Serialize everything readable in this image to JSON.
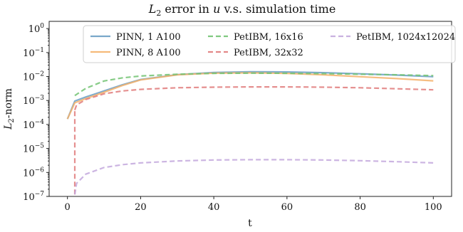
{
  "chart_data": {
    "type": "line",
    "title": "L2 error in u v.s. simulation time",
    "title_parts": {
      "base": "L",
      "sub": "2",
      "rest": " error in ",
      "var": "u",
      "tail": " v.s. simulation time"
    },
    "xlabel": "t",
    "ylabel": "L2-norm",
    "ylabel_parts": {
      "base": "L",
      "sub": "2",
      "rest": "-norm"
    },
    "xlim": [
      -5,
      105
    ],
    "ylim": [
      1e-07,
      2
    ],
    "yscale": "log",
    "xticks": [
      0,
      20,
      40,
      60,
      80,
      100
    ],
    "yticks": [
      {
        "value": 1,
        "exp": "0"
      },
      {
        "value": 0.1,
        "exp": "−1"
      },
      {
        "value": 0.01,
        "exp": "−2"
      },
      {
        "value": 0.001,
        "exp": "−3"
      },
      {
        "value": 0.0001,
        "exp": "−4"
      },
      {
        "value": 1e-05,
        "exp": "−5"
      },
      {
        "value": 1e-06,
        "exp": "−6"
      },
      {
        "value": 1e-07,
        "exp": "−7"
      }
    ],
    "ytick_base": "10",
    "grid": false,
    "legend_position": "top-right",
    "series": [
      {
        "name": "PINN, 1 A100",
        "color": "#6a9ec4",
        "style": "solid",
        "x": [
          0,
          2,
          5,
          10,
          15,
          20,
          30,
          40,
          50,
          60,
          70,
          80,
          90,
          100
        ],
        "y": [
          0.00017,
          0.00095,
          0.0014,
          0.0025,
          0.0045,
          0.0075,
          0.012,
          0.0148,
          0.0158,
          0.0155,
          0.0145,
          0.013,
          0.0115,
          0.0098
        ]
      },
      {
        "name": "PINN, 8 A100",
        "color": "#f5b26b",
        "style": "solid",
        "x": [
          0,
          2,
          5,
          10,
          15,
          20,
          30,
          40,
          50,
          60,
          70,
          80,
          90,
          100
        ],
        "y": [
          0.00017,
          0.0008,
          0.0012,
          0.0022,
          0.0042,
          0.0072,
          0.0118,
          0.0138,
          0.0142,
          0.0135,
          0.0118,
          0.0098,
          0.0082,
          0.0066
        ]
      },
      {
        "name": "PetIBM, 16x16",
        "color": "#72c372",
        "style": "dashed",
        "x": [
          2,
          2.5,
          5,
          10,
          15,
          20,
          30,
          40,
          50,
          60,
          70,
          80,
          90,
          100
        ],
        "y": [
          0.0016,
          0.0018,
          0.0032,
          0.0065,
          0.0088,
          0.0105,
          0.0125,
          0.0135,
          0.0138,
          0.0136,
          0.0132,
          0.0125,
          0.0118,
          0.0109
        ]
      },
      {
        "name": "PetIBM, 32x32",
        "color": "#e07b7b",
        "style": "dashed",
        "x": [
          2,
          2.5,
          5,
          10,
          15,
          20,
          30,
          40,
          50,
          60,
          70,
          80,
          90,
          100
        ],
        "y": [
          0.0004,
          0.00065,
          0.0011,
          0.0019,
          0.0025,
          0.0029,
          0.0034,
          0.0036,
          0.0037,
          0.0037,
          0.0036,
          0.0034,
          0.0031,
          0.0028
        ]
      },
      {
        "name": "PetIBM, 1024x12024",
        "color": "#c3a8dd",
        "style": "dashed",
        "x": [
          2,
          2.5,
          5,
          10,
          15,
          20,
          30,
          40,
          50,
          60,
          70,
          80,
          90,
          100
        ],
        "y": [
          1.2e-07,
          3.5e-07,
          8.5e-07,
          1.6e-06,
          2.1e-06,
          2.5e-06,
          3e-06,
          3.3e-06,
          3.4e-06,
          3.4e-06,
          3.3e-06,
          3.1e-06,
          2.8e-06,
          2.5e-06
        ]
      }
    ],
    "connectors": [
      {
        "color": "#e07b7b",
        "x": [
          2,
          2
        ],
        "y": [
          1.2e-07,
          0.0004
        ]
      }
    ]
  }
}
